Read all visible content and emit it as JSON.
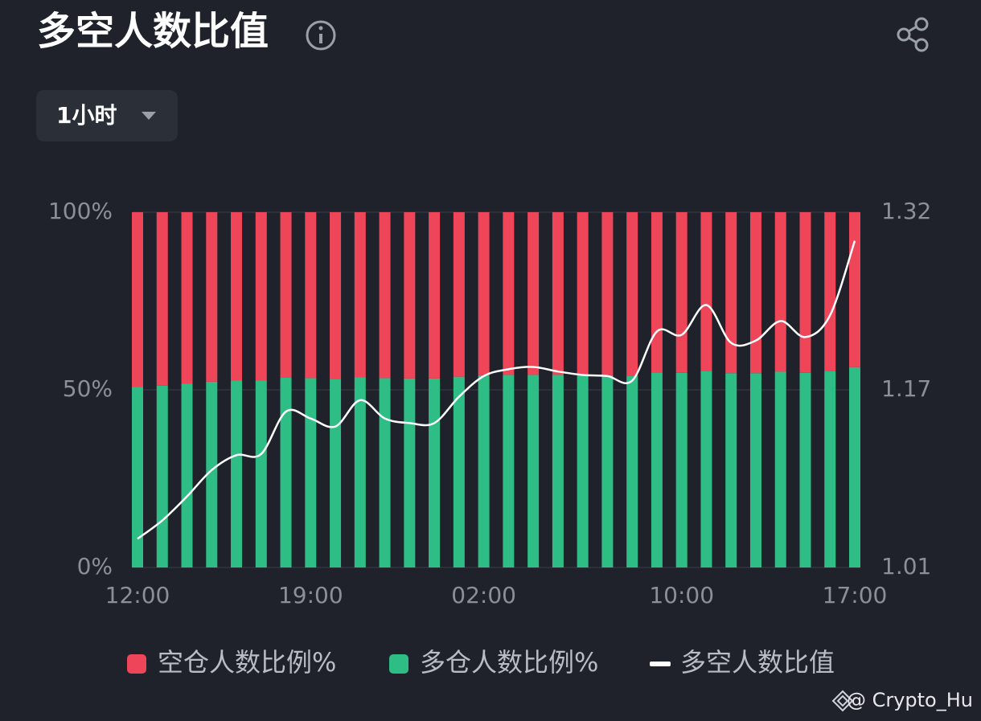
{
  "header": {
    "title": "多空人数比值",
    "interval": "1小时"
  },
  "watermark": "@ Crypto_Hu",
  "chart_data": {
    "type": "bar",
    "categories": [
      "12:00",
      null,
      null,
      null,
      null,
      null,
      null,
      "19:00",
      null,
      null,
      null,
      null,
      null,
      null,
      "02:00",
      null,
      null,
      null,
      null,
      null,
      null,
      null,
      "10:00",
      null,
      null,
      null,
      null,
      null,
      null,
      "17:00"
    ],
    "series": [
      {
        "name": "空仓人数比例%",
        "color": "#ef4559",
        "values": [
          49.2,
          48.8,
          48.3,
          47.7,
          47.4,
          47.4,
          46.6,
          46.7,
          46.9,
          46.4,
          46.7,
          46.8,
          46.8,
          46.3,
          45.9,
          45.8,
          45.8,
          45.8,
          45.9,
          45.9,
          46.0,
          45.1,
          45.2,
          44.7,
          45.3,
          45.3,
          44.9,
          45.2,
          44.8,
          43.6
        ]
      },
      {
        "name": "多仓人数比例%",
        "color": "#2ebd85",
        "values": [
          50.8,
          51.2,
          51.7,
          52.3,
          52.6,
          52.6,
          53.4,
          53.3,
          53.1,
          53.6,
          53.3,
          53.2,
          53.2,
          53.7,
          54.1,
          54.2,
          54.2,
          54.2,
          54.1,
          54.1,
          54.0,
          54.9,
          54.8,
          55.3,
          54.7,
          54.7,
          55.1,
          54.8,
          55.2,
          56.4
        ]
      },
      {
        "name": "多空人数比值",
        "color": "#ffffff",
        "type": "line",
        "axis": "y2",
        "values": [
          1.035,
          1.051,
          1.072,
          1.095,
          1.108,
          1.109,
          1.146,
          1.14,
          1.133,
          1.156,
          1.14,
          1.136,
          1.136,
          1.159,
          1.177,
          1.183,
          1.185,
          1.181,
          1.178,
          1.177,
          1.173,
          1.216,
          1.213,
          1.239,
          1.206,
          1.208,
          1.225,
          1.211,
          1.23,
          1.295
        ]
      }
    ],
    "ylim": [
      0,
      100
    ],
    "yticks": [
      {
        "value": 0,
        "label": "0%"
      },
      {
        "value": 50,
        "label": "50%"
      },
      {
        "value": 100,
        "label": "100%"
      }
    ],
    "y2lim": [
      1.01,
      1.32
    ],
    "y2ticks": [
      {
        "value": 1.01,
        "label": "1.01"
      },
      {
        "value": 1.165,
        "label": "1.17"
      },
      {
        "value": 1.32,
        "label": "1.32"
      }
    ],
    "grid": true
  }
}
